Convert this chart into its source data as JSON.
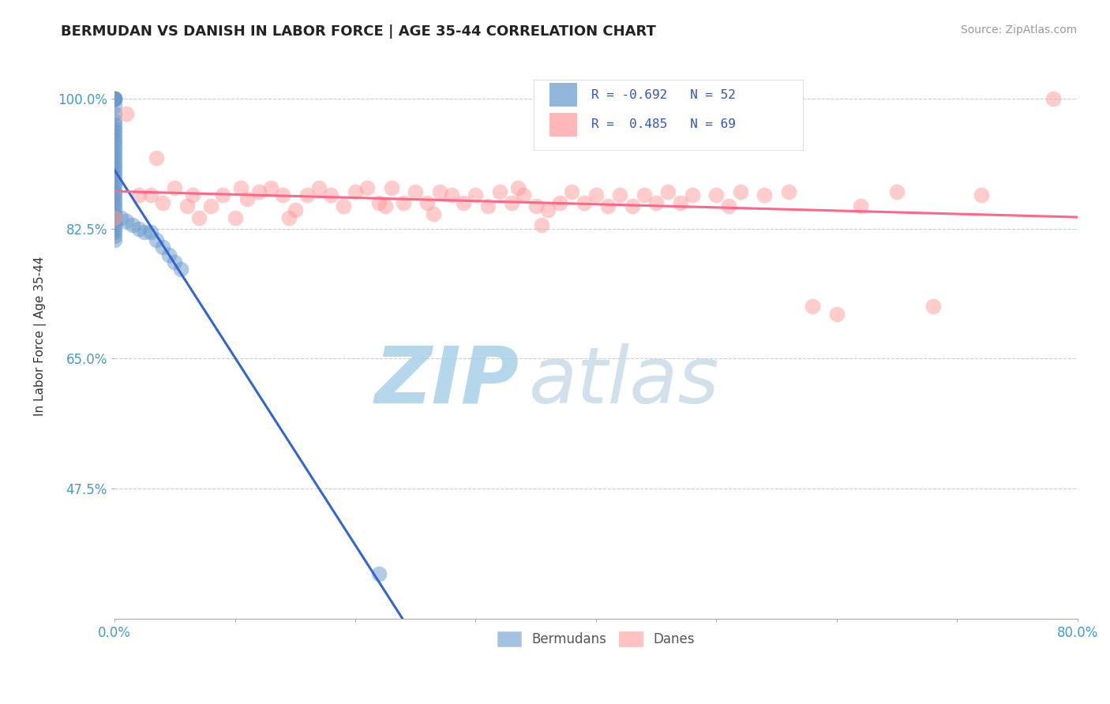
{
  "title": "BERMUDAN VS DANISH IN LABOR FORCE | AGE 35-44 CORRELATION CHART",
  "source": "Source: ZipAtlas.com",
  "ylabel": "In Labor Force | Age 35-44",
  "xlim": [
    0.0,
    0.8
  ],
  "ylim": [
    0.3,
    1.06
  ],
  "xticks": [
    0.0,
    0.1,
    0.2,
    0.3,
    0.4,
    0.5,
    0.6,
    0.7,
    0.8
  ],
  "xtick_labels": [
    "0.0%",
    "",
    "",
    "",
    "",
    "",
    "",
    "",
    "80.0%"
  ],
  "ytick_positions": [
    0.475,
    0.65,
    0.825,
    1.0
  ],
  "ytick_labels": [
    "47.5%",
    "65.0%",
    "82.5%",
    "100.0%"
  ],
  "bermudans_color": "#6699CC",
  "danes_color": "#FF9999",
  "bermudans_R": -0.692,
  "bermudans_N": 52,
  "danes_R": 0.485,
  "danes_N": 69,
  "legend_R_color": "#3355BB",
  "watermark": "ZIPatlas",
  "watermark_color": "#C8E0F0",
  "background_color": "#FFFFFF",
  "grid_color": "#CCCCCC",
  "bermudans_x": [
    0.0,
    0.0,
    0.0,
    0.0,
    0.0,
    0.0,
    0.0,
    0.0,
    0.0,
    0.0,
    0.0,
    0.0,
    0.0,
    0.0,
    0.0,
    0.0,
    0.0,
    0.0,
    0.0,
    0.0,
    0.0,
    0.0,
    0.0,
    0.0,
    0.0,
    0.0,
    0.0,
    0.0,
    0.0,
    0.0,
    0.0,
    0.0,
    0.0,
    0.0,
    0.0,
    0.0,
    0.0,
    0.0,
    0.0,
    0.0,
    0.005,
    0.01,
    0.015,
    0.02,
    0.025,
    0.03,
    0.035,
    0.04,
    0.045,
    0.05,
    0.055,
    0.22
  ],
  "bermudans_y": [
    1.0,
    1.0,
    1.0,
    1.0,
    1.0,
    0.99,
    0.98,
    0.97,
    0.965,
    0.96,
    0.955,
    0.95,
    0.945,
    0.94,
    0.935,
    0.93,
    0.925,
    0.92,
    0.915,
    0.91,
    0.905,
    0.9,
    0.895,
    0.89,
    0.885,
    0.88,
    0.875,
    0.87,
    0.865,
    0.86,
    0.855,
    0.85,
    0.845,
    0.84,
    0.835,
    0.83,
    0.825,
    0.82,
    0.815,
    0.81,
    0.84,
    0.835,
    0.83,
    0.825,
    0.82,
    0.82,
    0.81,
    0.8,
    0.79,
    0.78,
    0.77,
    0.36
  ],
  "danes_x": [
    0.0,
    0.01,
    0.02,
    0.03,
    0.035,
    0.04,
    0.05,
    0.06,
    0.065,
    0.07,
    0.08,
    0.09,
    0.1,
    0.105,
    0.11,
    0.12,
    0.13,
    0.14,
    0.145,
    0.15,
    0.16,
    0.17,
    0.18,
    0.19,
    0.2,
    0.21,
    0.22,
    0.225,
    0.23,
    0.24,
    0.25,
    0.26,
    0.265,
    0.27,
    0.28,
    0.29,
    0.3,
    0.31,
    0.32,
    0.33,
    0.335,
    0.34,
    0.35,
    0.355,
    0.36,
    0.37,
    0.38,
    0.39,
    0.4,
    0.41,
    0.42,
    0.43,
    0.44,
    0.45,
    0.46,
    0.47,
    0.48,
    0.5,
    0.51,
    0.52,
    0.54,
    0.56,
    0.58,
    0.6,
    0.62,
    0.65,
    0.68,
    0.72,
    0.78
  ],
  "danes_y": [
    0.84,
    0.98,
    0.87,
    0.87,
    0.92,
    0.86,
    0.88,
    0.855,
    0.87,
    0.84,
    0.855,
    0.87,
    0.84,
    0.88,
    0.865,
    0.875,
    0.88,
    0.87,
    0.84,
    0.85,
    0.87,
    0.88,
    0.87,
    0.855,
    0.875,
    0.88,
    0.86,
    0.855,
    0.88,
    0.86,
    0.875,
    0.86,
    0.845,
    0.875,
    0.87,
    0.86,
    0.87,
    0.855,
    0.875,
    0.86,
    0.88,
    0.87,
    0.855,
    0.83,
    0.85,
    0.86,
    0.875,
    0.86,
    0.87,
    0.855,
    0.87,
    0.855,
    0.87,
    0.86,
    0.875,
    0.86,
    0.87,
    0.87,
    0.855,
    0.875,
    0.87,
    0.875,
    0.72,
    0.71,
    0.855,
    0.875,
    0.72,
    0.87,
    1.0
  ]
}
